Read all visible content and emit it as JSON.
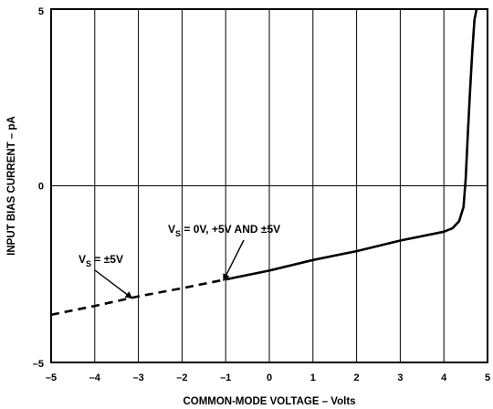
{
  "chart_data": {
    "type": "line",
    "xlabel": "COMMON-MODE VOLTAGE – Volts",
    "ylabel": "INPUT BIAS CURRENT – pA",
    "xlim": [
      -5,
      5
    ],
    "ylim": [
      -5,
      5
    ],
    "x_ticks": [
      "–5",
      "–4",
      "–3",
      "–2",
      "–1",
      "0",
      "1",
      "2",
      "3",
      "4",
      "5"
    ],
    "y_ticks": [
      "5",
      "0",
      "–5"
    ],
    "x_tick_values": [
      -5,
      -4,
      -3,
      -2,
      -1,
      0,
      1,
      2,
      3,
      4,
      5
    ],
    "y_tick_values": [
      5,
      0,
      -5
    ],
    "grid": "vertical lines at each x tick, horizontal line at y = 0",
    "series": [
      {
        "name": "VS = ±5V",
        "style": "dashed",
        "x": [
          -5,
          -4,
          -3,
          -2,
          -1
        ],
        "y": [
          -3.65,
          -3.4,
          -3.13,
          -2.9,
          -2.65
        ]
      },
      {
        "name": "VS = 0V, +5V AND ±5V",
        "style": "solid",
        "x": [
          -1,
          0,
          1,
          2,
          3,
          4,
          4.2,
          4.35,
          4.45,
          4.5,
          4.55,
          4.6,
          4.65,
          4.7,
          4.75
        ],
        "y": [
          -2.65,
          -2.4,
          -2.1,
          -1.85,
          -1.55,
          -1.3,
          -1.2,
          -1.0,
          -0.6,
          0.2,
          1.5,
          2.7,
          3.8,
          4.7,
          5.0
        ]
      }
    ],
    "annotations": [
      {
        "text_main": "V",
        "text_sub": "S",
        "text_rest": " = ±5V",
        "arrow_to": [
          -3.15,
          -3.18
        ]
      },
      {
        "text_main": "V",
        "text_sub": "S",
        "text_rest": " = 0V, +5V AND ±5V",
        "arrow_to": [
          -1.05,
          -2.68
        ]
      }
    ]
  }
}
